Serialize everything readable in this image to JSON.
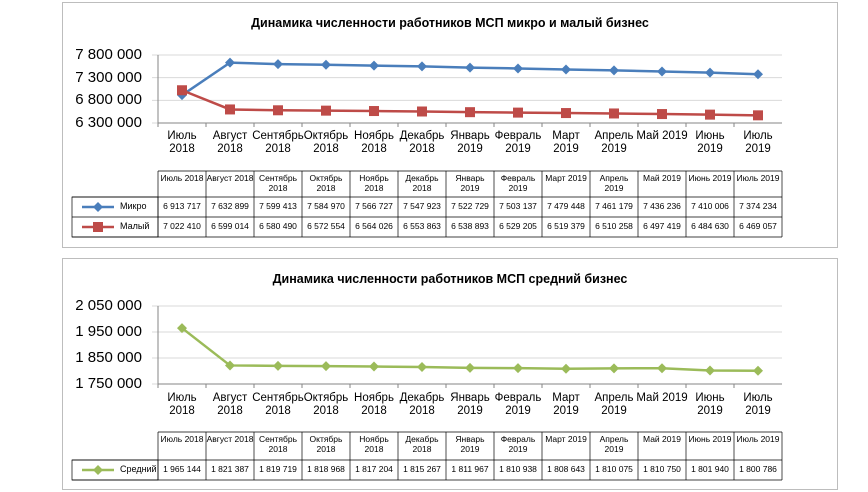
{
  "chart_data": [
    {
      "type": "line",
      "title": "Динамика численности работников МСП микро и малый бизнес",
      "categories": [
        "Июль 2018",
        "Август 2018",
        "Сентябрь 2018",
        "Октябрь 2018",
        "Ноябрь 2018",
        "Декабрь 2018",
        "Январь 2019",
        "Февраль 2019",
        "Март 2019",
        "Апрель 2019",
        "Май 2019",
        "Июнь 2019",
        "Июль 2019"
      ],
      "series": [
        {
          "name": "Микро",
          "color": "#4a7ebb",
          "marker": "diamond",
          "values": [
            6913717,
            7632899,
            7599413,
            7584970,
            7566727,
            7547923,
            7522729,
            7503137,
            7479448,
            7461179,
            7436236,
            7410006,
            7374234
          ],
          "value_labels": [
            "6 913 717",
            "7 632 899",
            "7 599 413",
            "7 584 970",
            "7 566 727",
            "7 547 923",
            "7 522 729",
            "7 503 137",
            "7 479 448",
            "7 461 179",
            "7 436 236",
            "7 410 006",
            "7 374 234"
          ]
        },
        {
          "name": "Малый",
          "color": "#be4b48",
          "marker": "square",
          "values": [
            7022410,
            6599014,
            6580490,
            6572554,
            6564026,
            6553863,
            6538893,
            6529205,
            6519379,
            6510258,
            6497419,
            6484630,
            6469057
          ],
          "value_labels": [
            "7 022 410",
            "6 599 014",
            "6 580 490",
            "6 572 554",
            "6 564 026",
            "6 553 863",
            "6 538 893",
            "6 529 205",
            "6 519 379",
            "6 510 258",
            "6 497 419",
            "6 484 630",
            "6 469 057"
          ]
        }
      ],
      "ylim": [
        6300000,
        7800000
      ],
      "yticks": [
        {
          "value": 6300000,
          "label": "6 300 000"
        },
        {
          "value": 6800000,
          "label": "6 800 000"
        },
        {
          "value": 7300000,
          "label": "7 300 000"
        },
        {
          "value": 7800000,
          "label": "7 800 000"
        }
      ],
      "grid": true
    },
    {
      "type": "line",
      "title": "Динамика численности работников МСП средний бизнес",
      "categories": [
        "Июль 2018",
        "Август 2018",
        "Сентябрь 2018",
        "Октябрь 2018",
        "Ноябрь 2018",
        "Декабрь 2018",
        "Январь 2019",
        "Февраль 2019",
        "Март 2019",
        "Апрель 2019",
        "Май 2019",
        "Июнь 2019",
        "Июль 2019"
      ],
      "series": [
        {
          "name": "Средний",
          "color": "#9bbb59",
          "marker": "diamond",
          "values": [
            1965144,
            1821387,
            1819719,
            1818968,
            1817204,
            1815267,
            1811967,
            1810938,
            1808643,
            1810075,
            1810750,
            1801940,
            1800786
          ],
          "value_labels": [
            "1 965 144",
            "1 821 387",
            "1 819 719",
            "1 818 968",
            "1 817 204",
            "1 815 267",
            "1 811 967",
            "1 810 938",
            "1 808 643",
            "1 810 075",
            "1 810 750",
            "1 801 940",
            "1 800 786"
          ]
        }
      ],
      "ylim": [
        1750000,
        2050000
      ],
      "yticks": [
        {
          "value": 1750000,
          "label": "1 750 000"
        },
        {
          "value": 1850000,
          "label": "1 850 000"
        },
        {
          "value": 1950000,
          "label": "1 950 000"
        },
        {
          "value": 2050000,
          "label": "2 050 000"
        }
      ],
      "grid": true
    }
  ]
}
